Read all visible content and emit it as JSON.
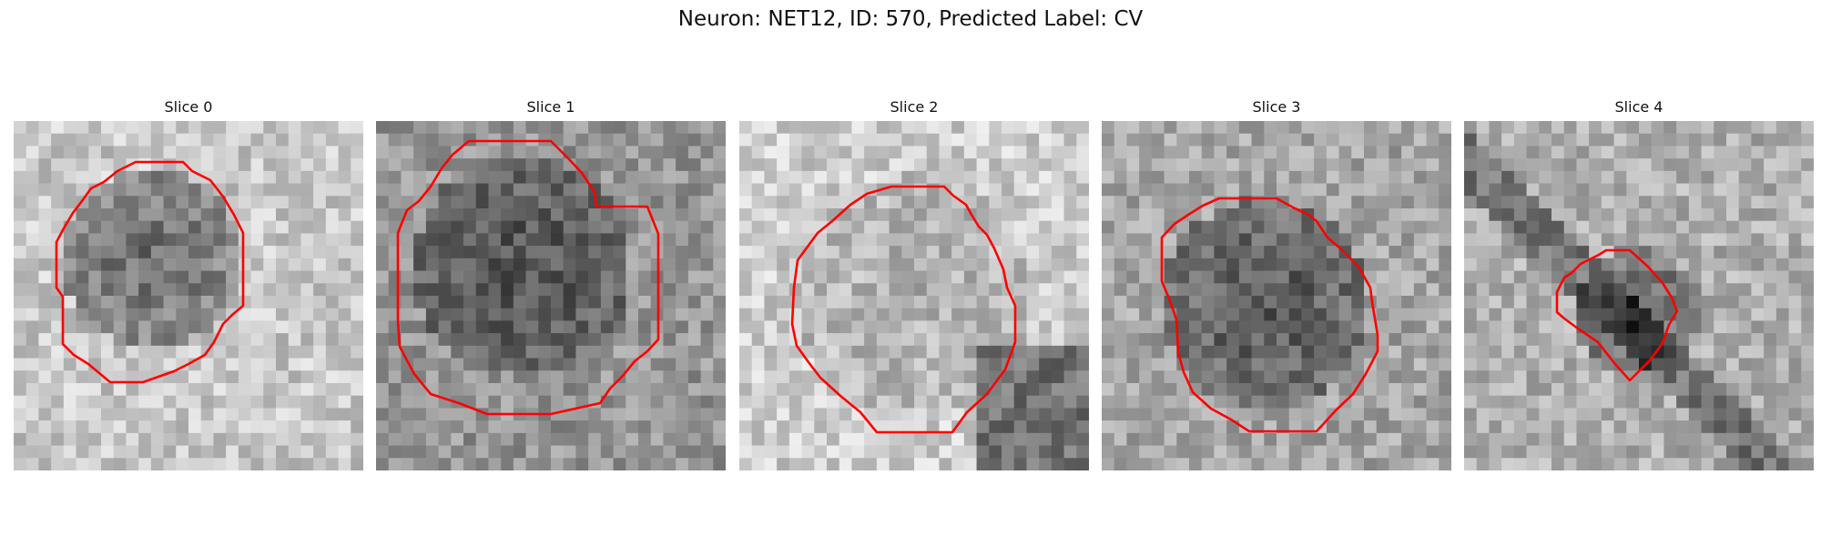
{
  "figure": {
    "title": "Neuron: NET12, ID: 570, Predicted Label: CV",
    "contour_color": "#ff0000"
  },
  "panels": [
    {
      "title": "Slice 0"
    },
    {
      "title": "Slice 1"
    },
    {
      "title": "Slice 2"
    },
    {
      "title": "Slice 3"
    },
    {
      "title": "Slice 4"
    }
  ]
}
